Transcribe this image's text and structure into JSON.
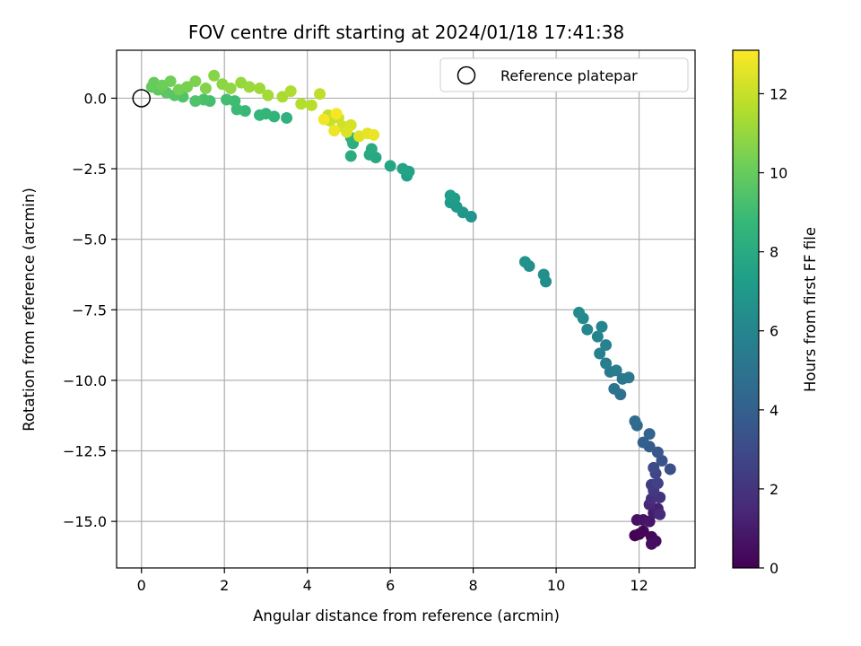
{
  "chart_data": {
    "type": "scatter",
    "title": "FOV centre drift starting at 2024/01/18 17:41:38",
    "xlabel": "Angular distance from reference (arcmin)",
    "ylabel": "Rotation from reference (arcmin)",
    "xlim": [
      -0.6,
      13.35
    ],
    "ylim": [
      -16.65,
      1.7
    ],
    "xticks": [
      0,
      2,
      4,
      6,
      8,
      10,
      12
    ],
    "yticks": [
      0.0,
      -2.5,
      -5.0,
      -7.5,
      -10.0,
      -12.5,
      -15.0
    ],
    "ytick_labels": [
      "0.0",
      "−2.5",
      "−5.0",
      "−7.5",
      "−10.0",
      "−12.5",
      "−15.0"
    ],
    "xtick_labels": [
      "0",
      "2",
      "4",
      "6",
      "8",
      "10",
      "12"
    ],
    "grid": true,
    "legend": {
      "position": "upper right",
      "entries": [
        {
          "label": "Reference platepar",
          "marker": "open-circle",
          "x": 0,
          "y": 0
        }
      ]
    },
    "colorbar": {
      "label": "Hours from first FF file",
      "min": 0,
      "max": 13.1,
      "ticks": [
        0,
        2,
        4,
        6,
        8,
        10,
        12
      ],
      "colormap": "viridis"
    },
    "colormap_stops": [
      "#440154",
      "#482878",
      "#3e4989",
      "#31688e",
      "#26828e",
      "#1f9e89",
      "#35b779",
      "#6ece58",
      "#b5de2b",
      "#fde725"
    ],
    "series": [
      {
        "points": [
          {
            "x": 11.9,
            "y": -15.5,
            "t": 0.0
          },
          {
            "x": 12.0,
            "y": -15.45,
            "t": 0.1
          },
          {
            "x": 12.1,
            "y": -15.35,
            "t": 0.2
          },
          {
            "x": 12.3,
            "y": -15.55,
            "t": 0.3
          },
          {
            "x": 12.4,
            "y": -15.7,
            "t": 0.4
          },
          {
            "x": 12.3,
            "y": -15.8,
            "t": 0.5
          },
          {
            "x": 11.95,
            "y": -14.95,
            "t": 0.6
          },
          {
            "x": 12.1,
            "y": -14.95,
            "t": 0.7
          },
          {
            "x": 12.25,
            "y": -15.0,
            "t": 0.8
          },
          {
            "x": 12.35,
            "y": -14.7,
            "t": 1.0
          },
          {
            "x": 12.45,
            "y": -14.55,
            "t": 1.2
          },
          {
            "x": 12.25,
            "y": -14.4,
            "t": 1.4
          },
          {
            "x": 12.5,
            "y": -14.75,
            "t": 1.6
          },
          {
            "x": 12.3,
            "y": -14.2,
            "t": 1.8
          },
          {
            "x": 12.5,
            "y": -14.15,
            "t": 2.0
          },
          {
            "x": 12.35,
            "y": -13.9,
            "t": 2.2
          },
          {
            "x": 12.3,
            "y": -13.7,
            "t": 2.4
          },
          {
            "x": 12.45,
            "y": -13.65,
            "t": 2.6
          },
          {
            "x": 12.4,
            "y": -13.3,
            "t": 2.8
          },
          {
            "x": 12.35,
            "y": -13.1,
            "t": 3.0
          },
          {
            "x": 12.75,
            "y": -13.15,
            "t": 3.2
          },
          {
            "x": 12.55,
            "y": -12.85,
            "t": 3.4
          },
          {
            "x": 12.45,
            "y": -12.55,
            "t": 3.6
          },
          {
            "x": 12.25,
            "y": -12.35,
            "t": 3.8
          },
          {
            "x": 12.1,
            "y": -12.2,
            "t": 4.0
          },
          {
            "x": 12.25,
            "y": -11.9,
            "t": 4.2
          },
          {
            "x": 11.95,
            "y": -11.6,
            "t": 4.4
          },
          {
            "x": 11.9,
            "y": -11.45,
            "t": 4.6
          },
          {
            "x": 11.55,
            "y": -10.5,
            "t": 4.8
          },
          {
            "x": 11.4,
            "y": -10.3,
            "t": 5.0
          },
          {
            "x": 11.6,
            "y": -9.95,
            "t": 5.2
          },
          {
            "x": 11.75,
            "y": -9.9,
            "t": 5.3
          },
          {
            "x": 11.3,
            "y": -9.7,
            "t": 5.4
          },
          {
            "x": 11.45,
            "y": -9.65,
            "t": 5.5
          },
          {
            "x": 11.2,
            "y": -9.4,
            "t": 5.6
          },
          {
            "x": 11.05,
            "y": -9.05,
            "t": 5.7
          },
          {
            "x": 11.2,
            "y": -8.75,
            "t": 5.8
          },
          {
            "x": 11.0,
            "y": -8.45,
            "t": 5.9
          },
          {
            "x": 11.1,
            "y": -8.1,
            "t": 6.0
          },
          {
            "x": 10.75,
            "y": -8.2,
            "t": 6.1
          },
          {
            "x": 10.65,
            "y": -7.8,
            "t": 6.2
          },
          {
            "x": 10.55,
            "y": -7.6,
            "t": 6.3
          },
          {
            "x": 9.75,
            "y": -6.5,
            "t": 6.4
          },
          {
            "x": 9.7,
            "y": -6.25,
            "t": 6.5
          },
          {
            "x": 9.35,
            "y": -5.95,
            "t": 6.6
          },
          {
            "x": 9.25,
            "y": -5.8,
            "t": 6.7
          },
          {
            "x": 7.95,
            "y": -4.2,
            "t": 6.8
          },
          {
            "x": 7.75,
            "y": -4.05,
            "t": 6.9
          },
          {
            "x": 7.6,
            "y": -3.85,
            "t": 7.0
          },
          {
            "x": 7.45,
            "y": -3.7,
            "t": 7.1
          },
          {
            "x": 7.55,
            "y": -3.55,
            "t": 7.2
          },
          {
            "x": 7.45,
            "y": -3.45,
            "t": 7.3
          },
          {
            "x": 6.4,
            "y": -2.75,
            "t": 7.4
          },
          {
            "x": 6.45,
            "y": -2.6,
            "t": 7.5
          },
          {
            "x": 6.3,
            "y": -2.5,
            "t": 7.6
          },
          {
            "x": 6.0,
            "y": -2.4,
            "t": 7.7
          },
          {
            "x": 5.65,
            "y": -2.1,
            "t": 7.8
          },
          {
            "x": 5.5,
            "y": -2.0,
            "t": 7.9
          },
          {
            "x": 5.55,
            "y": -1.8,
            "t": 8.0
          },
          {
            "x": 5.05,
            "y": -2.05,
            "t": 8.1
          },
          {
            "x": 5.1,
            "y": -1.6,
            "t": 8.2
          },
          {
            "x": 5.05,
            "y": -1.4,
            "t": 8.3
          },
          {
            "x": 3.5,
            "y": -0.7,
            "t": 8.4
          },
          {
            "x": 3.2,
            "y": -0.65,
            "t": 8.5
          },
          {
            "x": 3.0,
            "y": -0.55,
            "t": 8.6
          },
          {
            "x": 2.85,
            "y": -0.6,
            "t": 8.7
          },
          {
            "x": 2.5,
            "y": -0.45,
            "t": 8.8
          },
          {
            "x": 2.3,
            "y": -0.4,
            "t": 8.9
          },
          {
            "x": 2.25,
            "y": -0.1,
            "t": 9.0
          },
          {
            "x": 2.05,
            "y": -0.05,
            "t": 9.1
          },
          {
            "x": 1.65,
            "y": -0.1,
            "t": 9.2
          },
          {
            "x": 1.5,
            "y": -0.05,
            "t": 9.3
          },
          {
            "x": 1.3,
            "y": -0.1,
            "t": 9.4
          },
          {
            "x": 1.0,
            "y": 0.05,
            "t": 9.5
          },
          {
            "x": 0.8,
            "y": 0.1,
            "t": 9.6
          },
          {
            "x": 0.6,
            "y": 0.2,
            "t": 9.7
          },
          {
            "x": 0.4,
            "y": 0.3,
            "t": 9.8
          },
          {
            "x": 0.25,
            "y": 0.4,
            "t": 9.9
          },
          {
            "x": 0.3,
            "y": 0.55,
            "t": 10.0
          },
          {
            "x": 0.5,
            "y": 0.45,
            "t": 10.1
          },
          {
            "x": 0.7,
            "y": 0.6,
            "t": 10.2
          },
          {
            "x": 0.9,
            "y": 0.3,
            "t": 10.3
          },
          {
            "x": 1.1,
            "y": 0.4,
            "t": 10.4
          },
          {
            "x": 1.3,
            "y": 0.6,
            "t": 10.5
          },
          {
            "x": 1.55,
            "y": 0.35,
            "t": 10.6
          },
          {
            "x": 1.75,
            "y": 0.8,
            "t": 10.7
          },
          {
            "x": 1.95,
            "y": 0.5,
            "t": 10.8
          },
          {
            "x": 2.15,
            "y": 0.35,
            "t": 10.9
          },
          {
            "x": 2.4,
            "y": 0.55,
            "t": 11.0
          },
          {
            "x": 2.6,
            "y": 0.4,
            "t": 11.1
          },
          {
            "x": 2.85,
            "y": 0.35,
            "t": 11.2
          },
          {
            "x": 3.05,
            "y": 0.1,
            "t": 11.3
          },
          {
            "x": 3.4,
            "y": 0.05,
            "t": 11.4
          },
          {
            "x": 3.6,
            "y": 0.25,
            "t": 11.5
          },
          {
            "x": 3.85,
            "y": -0.2,
            "t": 11.6
          },
          {
            "x": 4.1,
            "y": -0.25,
            "t": 11.7
          },
          {
            "x": 4.3,
            "y": 0.15,
            "t": 11.8
          },
          {
            "x": 4.5,
            "y": -0.6,
            "t": 11.9
          },
          {
            "x": 4.55,
            "y": -0.8,
            "t": 12.0
          },
          {
            "x": 4.75,
            "y": -0.7,
            "t": 12.1
          },
          {
            "x": 4.85,
            "y": -1.0,
            "t": 12.2
          },
          {
            "x": 5.05,
            "y": -0.95,
            "t": 12.3
          },
          {
            "x": 4.95,
            "y": -1.2,
            "t": 12.4
          },
          {
            "x": 5.25,
            "y": -1.35,
            "t": 12.5
          },
          {
            "x": 5.45,
            "y": -1.25,
            "t": 12.6
          },
          {
            "x": 5.6,
            "y": -1.3,
            "t": 12.7
          },
          {
            "x": 4.65,
            "y": -1.15,
            "t": 12.8
          },
          {
            "x": 4.4,
            "y": -0.75,
            "t": 12.9
          },
          {
            "x": 4.7,
            "y": -0.55,
            "t": 13.0
          }
        ]
      }
    ]
  }
}
